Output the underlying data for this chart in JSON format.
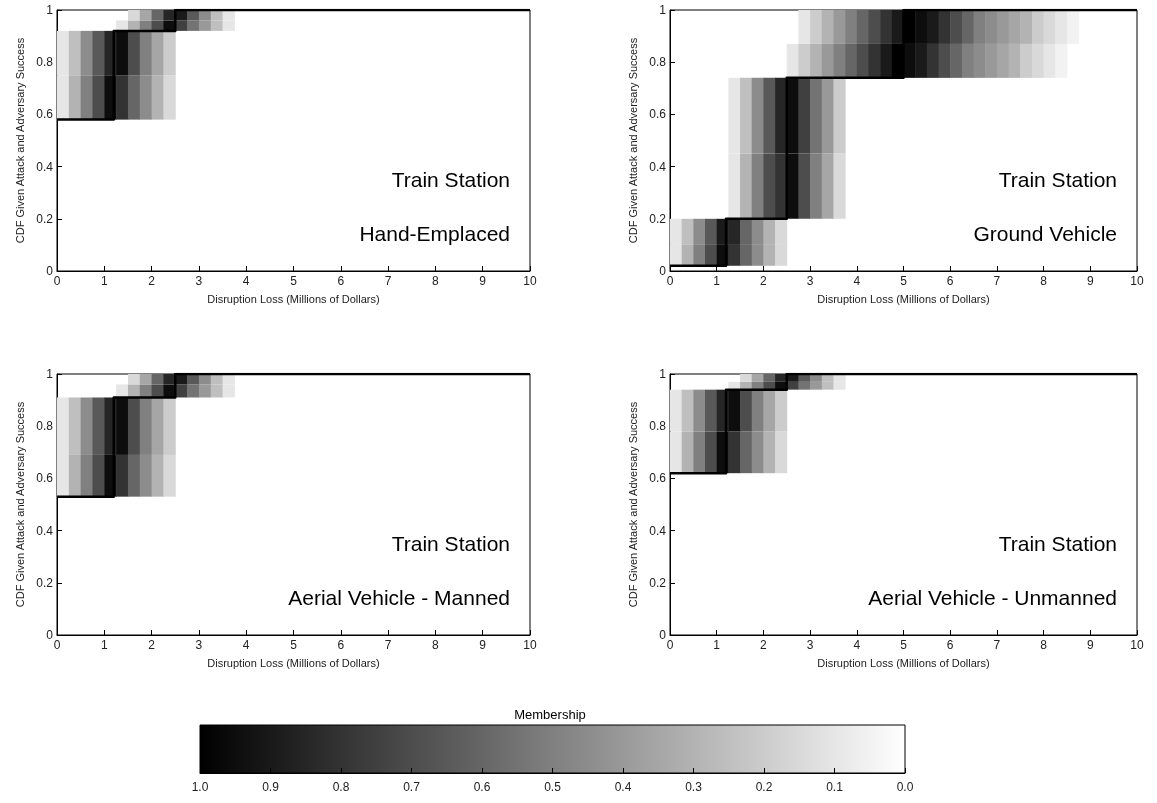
{
  "chart_data": [
    {
      "type": "step",
      "xlabel": "Disruption Loss (Millions of Dollars)",
      "ylabel": "CDF Given Attack and Adversary Success",
      "xlim": [
        0,
        10
      ],
      "ylim": [
        0,
        1
      ],
      "xticks": [
        0,
        1,
        2,
        3,
        4,
        5,
        6,
        7,
        8,
        9,
        10
      ],
      "yticks": [
        0,
        0.2,
        0.4,
        0.6,
        0.8,
        1
      ],
      "grid": false,
      "marker": "none",
      "line_style": "solid",
      "annotations": [
        "Train Station",
        "Hand-Emplaced"
      ],
      "series": [
        {
          "type": "bar",
          "x": [
            0.125,
            0.375,
            0.625,
            0.875,
            1.125,
            1.375,
            1.625,
            1.875,
            2.125,
            2.375
          ],
          "base": [
            0.58,
            0.58,
            0.58,
            0.58,
            0.58,
            0.58,
            0.58,
            0.58,
            0.58,
            0.58
          ],
          "values": [
            0.17,
            0.17,
            0.17,
            0.17,
            0.17,
            0.17,
            0.17,
            0.17,
            0.17,
            0.17
          ],
          "colors": [
            "#e6e6e6",
            "#b3b3b3",
            "#808080",
            "#4d4d4d",
            "#0d0d0d",
            "#333333",
            "#666666",
            "#8c8c8c",
            "#b3b3b3",
            "#d9d9d9"
          ]
        },
        {
          "type": "bar",
          "x": [
            0.125,
            0.375,
            0.625,
            0.875,
            1.125,
            1.375,
            1.625,
            1.875,
            2.125,
            2.375
          ],
          "base": [
            0.75,
            0.75,
            0.75,
            0.75,
            0.75,
            0.75,
            0.75,
            0.75,
            0.75,
            0.75
          ],
          "values": [
            0.17,
            0.17,
            0.17,
            0.17,
            0.17,
            0.17,
            0.17,
            0.17,
            0.17,
            0.17
          ],
          "colors": [
            "#e6e6e6",
            "#bfbfbf",
            "#8c8c8c",
            "#595959",
            "#262626",
            "#0d0d0d",
            "#4d4d4d",
            "#808080",
            "#a6a6a6",
            "#cccccc"
          ]
        },
        {
          "type": "bar",
          "x": [
            1.375,
            1.625,
            1.875,
            2.125,
            2.375,
            2.625,
            2.875,
            3.125,
            3.375,
            3.625
          ],
          "base": [
            0.92,
            0.92,
            0.92,
            0.92,
            0.92,
            0.92,
            0.92,
            0.92,
            0.92,
            0.92
          ],
          "values": [
            0.04,
            0.04,
            0.04,
            0.04,
            0.04,
            0.04,
            0.04,
            0.04,
            0.04,
            0.04
          ],
          "colors": [
            "#e6e6e6",
            "#b3b3b3",
            "#808080",
            "#4d4d4d",
            "#0d0d0d",
            "#404040",
            "#737373",
            "#999999",
            "#bfbfbf",
            "#e6e6e6"
          ]
        },
        {
          "type": "bar",
          "x": [
            1.625,
            1.875,
            2.125,
            2.375,
            2.625,
            2.875,
            3.125,
            3.375,
            3.625
          ],
          "base": [
            0.96,
            0.96,
            0.96,
            0.96,
            0.96,
            0.96,
            0.96,
            0.96,
            0.96
          ],
          "values": [
            0.04,
            0.04,
            0.04,
            0.04,
            0.04,
            0.04,
            0.04,
            0.04,
            0.04
          ],
          "colors": [
            "#d9d9d9",
            "#a6a6a6",
            "#666666",
            "#262626",
            "#1a1a1a",
            "#595959",
            "#8c8c8c",
            "#bfbfbf",
            "#e6e6e6"
          ]
        },
        {
          "color": "#000000",
          "x": [
            0,
            1.2,
            2.5,
            10
          ],
          "values": [
            0.58,
            0.92,
            1,
            1
          ]
        }
      ]
    },
    {
      "type": "step",
      "xlabel": "Disruption Loss (Millions of Dollars)",
      "ylabel": "CDF Given Attack and Adversary Success",
      "xlim": [
        0,
        10
      ],
      "ylim": [
        0,
        1
      ],
      "xticks": [
        0,
        1,
        2,
        3,
        4,
        5,
        6,
        7,
        8,
        9,
        10
      ],
      "yticks": [
        0,
        0.2,
        0.4,
        0.6,
        0.8,
        1
      ],
      "grid": false,
      "marker": "none",
      "line_style": "solid",
      "annotations": [
        "Train Station",
        "Ground Vehicle"
      ],
      "series": [
        {
          "type": "bar",
          "x": [
            0.125,
            0.375,
            0.625,
            0.875,
            1.125,
            1.375,
            1.625,
            1.875,
            2.125,
            2.375
          ],
          "base": [
            0.02,
            0.02,
            0.02,
            0.02,
            0.02,
            0.02,
            0.02,
            0.02,
            0.02,
            0.02
          ],
          "values": [
            0.08,
            0.08,
            0.08,
            0.08,
            0.08,
            0.08,
            0.08,
            0.08,
            0.08,
            0.08
          ],
          "colors": [
            "#e6e6e6",
            "#b3b3b3",
            "#808080",
            "#4d4d4d",
            "#0d0d0d",
            "#333333",
            "#666666",
            "#8c8c8c",
            "#b3b3b3",
            "#d9d9d9"
          ]
        },
        {
          "type": "bar",
          "x": [
            0.125,
            0.375,
            0.625,
            0.875,
            1.125,
            1.375,
            1.625,
            1.875,
            2.125,
            2.375
          ],
          "base": [
            0.1,
            0.1,
            0.1,
            0.1,
            0.1,
            0.1,
            0.1,
            0.1,
            0.1,
            0.1
          ],
          "values": [
            0.1,
            0.1,
            0.1,
            0.1,
            0.1,
            0.1,
            0.1,
            0.1,
            0.1,
            0.1
          ],
          "colors": [
            "#e6e6e6",
            "#bfbfbf",
            "#8c8c8c",
            "#595959",
            "#1a1a1a",
            "#262626",
            "#666666",
            "#8c8c8c",
            "#b3b3b3",
            "#d9d9d9"
          ]
        },
        {
          "type": "bar",
          "x": [
            1.375,
            1.625,
            1.875,
            2.125,
            2.375,
            2.625,
            2.875,
            3.125,
            3.375,
            3.625
          ],
          "base": [
            0.2,
            0.2,
            0.2,
            0.2,
            0.2,
            0.2,
            0.2,
            0.2,
            0.2,
            0.2
          ],
          "values": [
            0.25,
            0.25,
            0.25,
            0.25,
            0.25,
            0.25,
            0.25,
            0.25,
            0.25,
            0.25
          ],
          "colors": [
            "#e6e6e6",
            "#b3b3b3",
            "#808080",
            "#4d4d4d",
            "#333333",
            "#0d0d0d",
            "#4d4d4d",
            "#808080",
            "#a6a6a6",
            "#d9d9d9"
          ]
        },
        {
          "type": "bar",
          "x": [
            1.375,
            1.625,
            1.875,
            2.125,
            2.375,
            2.625,
            2.875,
            3.125,
            3.375,
            3.625
          ],
          "base": [
            0.45,
            0.45,
            0.45,
            0.45,
            0.45,
            0.45,
            0.45,
            0.45,
            0.45,
            0.45
          ],
          "values": [
            0.29,
            0.29,
            0.29,
            0.29,
            0.29,
            0.29,
            0.29,
            0.29,
            0.29,
            0.29
          ],
          "colors": [
            "#e6e6e6",
            "#bfbfbf",
            "#8c8c8c",
            "#595959",
            "#262626",
            "#0d0d0d",
            "#404040",
            "#737373",
            "#999999",
            "#cccccc"
          ]
        },
        {
          "type": "bar",
          "x": [
            2.625,
            2.875,
            3.125,
            3.375,
            3.625,
            3.875,
            4.125,
            4.375,
            4.625,
            4.875,
            5.125,
            5.375,
            5.625,
            5.875,
            6.125,
            6.375,
            6.625,
            6.875,
            7.125,
            7.375,
            7.625,
            7.875,
            8.125,
            8.375
          ],
          "base": [
            0.74,
            0.74,
            0.74,
            0.74,
            0.74,
            0.74,
            0.74,
            0.74,
            0.74,
            0.74,
            0.74,
            0.74,
            0.74,
            0.74,
            0.74,
            0.74,
            0.74,
            0.74,
            0.74,
            0.74,
            0.74,
            0.74,
            0.74,
            0.74
          ],
          "values": [
            0.13,
            0.13,
            0.13,
            0.13,
            0.13,
            0.13,
            0.13,
            0.13,
            0.13,
            0.13,
            0.13,
            0.13,
            0.13,
            0.13,
            0.13,
            0.13,
            0.13,
            0.13,
            0.13,
            0.13,
            0.13,
            0.13,
            0.13,
            0.13
          ],
          "colors": [
            "#e6e6e6",
            "#cccccc",
            "#b3b3b3",
            "#999999",
            "#808080",
            "#666666",
            "#4d4d4d",
            "#333333",
            "#1a1a1a",
            "#000000",
            "#0d0d0d",
            "#1a1a1a",
            "#333333",
            "#4d4d4d",
            "#666666",
            "#808080",
            "#8c8c8c",
            "#999999",
            "#a6a6a6",
            "#b3b3b3",
            "#cccccc",
            "#d9d9d9",
            "#e6e6e6",
            "#f2f2f2"
          ]
        },
        {
          "type": "bar",
          "x": [
            2.875,
            3.125,
            3.375,
            3.625,
            3.875,
            4.125,
            4.375,
            4.625,
            4.875,
            5.125,
            5.375,
            5.625,
            5.875,
            6.125,
            6.375,
            6.625,
            6.875,
            7.125,
            7.375,
            7.625,
            7.875,
            8.125,
            8.375,
            8.625
          ],
          "base": [
            0.87,
            0.87,
            0.87,
            0.87,
            0.87,
            0.87,
            0.87,
            0.87,
            0.87,
            0.87,
            0.87,
            0.87,
            0.87,
            0.87,
            0.87,
            0.87,
            0.87,
            0.87,
            0.87,
            0.87,
            0.87,
            0.87,
            0.87,
            0.87
          ],
          "values": [
            0.13,
            0.13,
            0.13,
            0.13,
            0.13,
            0.13,
            0.13,
            0.13,
            0.13,
            0.13,
            0.13,
            0.13,
            0.13,
            0.13,
            0.13,
            0.13,
            0.13,
            0.13,
            0.13,
            0.13,
            0.13,
            0.13,
            0.13,
            0.13
          ],
          "colors": [
            "#e6e6e6",
            "#cccccc",
            "#b3b3b3",
            "#999999",
            "#808080",
            "#666666",
            "#4d4d4d",
            "#333333",
            "#1a1a1a",
            "#000000",
            "#0d0d0d",
            "#1a1a1a",
            "#333333",
            "#4d4d4d",
            "#666666",
            "#808080",
            "#8c8c8c",
            "#999999",
            "#a6a6a6",
            "#b3b3b3",
            "#cccccc",
            "#d9d9d9",
            "#e6e6e6",
            "#f2f2f2"
          ]
        },
        {
          "color": "#000000",
          "x": [
            0,
            1.2,
            2.5,
            5,
            10
          ],
          "values": [
            0.02,
            0.2,
            0.74,
            1,
            1
          ]
        }
      ]
    },
    {
      "type": "step",
      "xlabel": "Disruption Loss (Millions of Dollars)",
      "ylabel": "CDF Given Attack and Adversary Success",
      "xlim": [
        0,
        10
      ],
      "ylim": [
        0,
        1
      ],
      "xticks": [
        0,
        1,
        2,
        3,
        4,
        5,
        6,
        7,
        8,
        9,
        10
      ],
      "yticks": [
        0,
        0.2,
        0.4,
        0.6,
        0.8,
        1
      ],
      "grid": false,
      "marker": "none",
      "line_style": "solid",
      "annotations": [
        "Train Station",
        "Aerial Vehicle - Manned"
      ],
      "series": [
        {
          "type": "bar",
          "x": [
            0.125,
            0.375,
            0.625,
            0.875,
            1.125,
            1.375,
            1.625,
            1.875,
            2.125,
            2.375
          ],
          "base": [
            0.53,
            0.53,
            0.53,
            0.53,
            0.53,
            0.53,
            0.53,
            0.53,
            0.53,
            0.53
          ],
          "values": [
            0.16,
            0.16,
            0.16,
            0.16,
            0.16,
            0.16,
            0.16,
            0.16,
            0.16,
            0.16
          ],
          "colors": [
            "#e6e6e6",
            "#b3b3b3",
            "#808080",
            "#4d4d4d",
            "#0d0d0d",
            "#333333",
            "#666666",
            "#8c8c8c",
            "#b3b3b3",
            "#d9d9d9"
          ]
        },
        {
          "type": "bar",
          "x": [
            0.125,
            0.375,
            0.625,
            0.875,
            1.125,
            1.375,
            1.625,
            1.875,
            2.125,
            2.375
          ],
          "base": [
            0.69,
            0.69,
            0.69,
            0.69,
            0.69,
            0.69,
            0.69,
            0.69,
            0.69,
            0.69
          ],
          "values": [
            0.22,
            0.22,
            0.22,
            0.22,
            0.22,
            0.22,
            0.22,
            0.22,
            0.22,
            0.22
          ],
          "colors": [
            "#e6e6e6",
            "#bfbfbf",
            "#8c8c8c",
            "#595959",
            "#262626",
            "#0d0d0d",
            "#4d4d4d",
            "#808080",
            "#a6a6a6",
            "#cccccc"
          ]
        },
        {
          "type": "bar",
          "x": [
            1.375,
            1.625,
            1.875,
            2.125,
            2.375,
            2.625,
            2.875,
            3.125,
            3.375,
            3.625
          ],
          "base": [
            0.91,
            0.91,
            0.91,
            0.91,
            0.91,
            0.91,
            0.91,
            0.91,
            0.91,
            0.91
          ],
          "values": [
            0.05,
            0.05,
            0.05,
            0.05,
            0.05,
            0.05,
            0.05,
            0.05,
            0.05,
            0.05
          ],
          "colors": [
            "#e6e6e6",
            "#b3b3b3",
            "#808080",
            "#4d4d4d",
            "#0d0d0d",
            "#404040",
            "#737373",
            "#999999",
            "#bfbfbf",
            "#e6e6e6"
          ]
        },
        {
          "type": "bar",
          "x": [
            1.625,
            1.875,
            2.125,
            2.375,
            2.625,
            2.875,
            3.125,
            3.375,
            3.625
          ],
          "base": [
            0.96,
            0.96,
            0.96,
            0.96,
            0.96,
            0.96,
            0.96,
            0.96,
            0.96
          ],
          "values": [
            0.04,
            0.04,
            0.04,
            0.04,
            0.04,
            0.04,
            0.04,
            0.04,
            0.04
          ],
          "colors": [
            "#d9d9d9",
            "#a6a6a6",
            "#666666",
            "#262626",
            "#1a1a1a",
            "#595959",
            "#8c8c8c",
            "#bfbfbf",
            "#e6e6e6"
          ]
        },
        {
          "color": "#000000",
          "x": [
            0,
            1.2,
            2.5,
            10
          ],
          "values": [
            0.53,
            0.91,
            1,
            1
          ]
        }
      ]
    },
    {
      "type": "step",
      "xlabel": "Disruption Loss (Millions of Dollars)",
      "ylabel": "CDF Given Attack and Adversary Success",
      "xlim": [
        0,
        10
      ],
      "ylim": [
        0,
        1
      ],
      "xticks": [
        0,
        1,
        2,
        3,
        4,
        5,
        6,
        7,
        8,
        9,
        10
      ],
      "yticks": [
        0,
        0.2,
        0.4,
        0.6,
        0.8,
        1
      ],
      "grid": false,
      "marker": "none",
      "line_style": "solid",
      "annotations": [
        "Train Station",
        "Aerial Vehicle - Unmanned"
      ],
      "clabel": "Membership",
      "clim": [
        1,
        0
      ],
      "cticks": [
        {
          "value": 1,
          "label": "1.0"
        },
        {
          "value": 0.9,
          "label": "0.9"
        },
        {
          "value": 0.8,
          "label": "0.8"
        },
        {
          "value": 0.7,
          "label": "0.7"
        },
        {
          "value": 0.6,
          "label": "0.6"
        },
        {
          "value": 0.5,
          "label": "0.5"
        },
        {
          "value": 0.4,
          "label": "0.4"
        },
        {
          "value": 0.3,
          "label": "0.3"
        },
        {
          "value": 0.2,
          "label": "0.2"
        },
        {
          "value": 0.1,
          "label": "0.1"
        },
        {
          "value": 0,
          "label": "0.0"
        }
      ],
      "series": [
        {
          "type": "bar",
          "x": [
            0.125,
            0.375,
            0.625,
            0.875,
            1.125,
            1.375,
            1.625,
            1.875,
            2.125,
            2.375
          ],
          "base": [
            0.62,
            0.62,
            0.62,
            0.62,
            0.62,
            0.62,
            0.62,
            0.62,
            0.62,
            0.62
          ],
          "values": [
            0.16,
            0.16,
            0.16,
            0.16,
            0.16,
            0.16,
            0.16,
            0.16,
            0.16,
            0.16
          ],
          "colors": [
            "#e6e6e6",
            "#b3b3b3",
            "#808080",
            "#4d4d4d",
            "#0d0d0d",
            "#333333",
            "#666666",
            "#8c8c8c",
            "#b3b3b3",
            "#d9d9d9"
          ]
        },
        {
          "type": "bar",
          "x": [
            0.125,
            0.375,
            0.625,
            0.875,
            1.125,
            1.375,
            1.625,
            1.875,
            2.125,
            2.375
          ],
          "base": [
            0.78,
            0.78,
            0.78,
            0.78,
            0.78,
            0.78,
            0.78,
            0.78,
            0.78,
            0.78
          ],
          "values": [
            0.16,
            0.16,
            0.16,
            0.16,
            0.16,
            0.16,
            0.16,
            0.16,
            0.16,
            0.16
          ],
          "colors": [
            "#e6e6e6",
            "#bfbfbf",
            "#8c8c8c",
            "#595959",
            "#262626",
            "#0d0d0d",
            "#4d4d4d",
            "#808080",
            "#a6a6a6",
            "#cccccc"
          ]
        },
        {
          "type": "bar",
          "x": [
            1.375,
            1.625,
            1.875,
            2.125,
            2.375,
            2.625,
            2.875,
            3.125,
            3.375,
            3.625
          ],
          "base": [
            0.94,
            0.94,
            0.94,
            0.94,
            0.94,
            0.94,
            0.94,
            0.94,
            0.94,
            0.94
          ],
          "values": [
            0.03,
            0.03,
            0.03,
            0.03,
            0.03,
            0.03,
            0.03,
            0.03,
            0.03,
            0.03
          ],
          "colors": [
            "#e6e6e6",
            "#b3b3b3",
            "#808080",
            "#4d4d4d",
            "#0d0d0d",
            "#404040",
            "#737373",
            "#999999",
            "#bfbfbf",
            "#e6e6e6"
          ]
        },
        {
          "type": "bar",
          "x": [
            1.625,
            1.875,
            2.125,
            2.375,
            2.625,
            2.875,
            3.125,
            3.375,
            3.625
          ],
          "base": [
            0.97,
            0.97,
            0.97,
            0.97,
            0.97,
            0.97,
            0.97,
            0.97,
            0.97
          ],
          "values": [
            0.03,
            0.03,
            0.03,
            0.03,
            0.03,
            0.03,
            0.03,
            0.03,
            0.03
          ],
          "colors": [
            "#d9d9d9",
            "#a6a6a6",
            "#666666",
            "#262626",
            "#1a1a1a",
            "#595959",
            "#8c8c8c",
            "#bfbfbf",
            "#e6e6e6"
          ]
        },
        {
          "color": "#000000",
          "x": [
            0,
            1.2,
            2.5,
            10
          ],
          "values": [
            0.62,
            0.94,
            1,
            1
          ]
        }
      ]
    }
  ]
}
